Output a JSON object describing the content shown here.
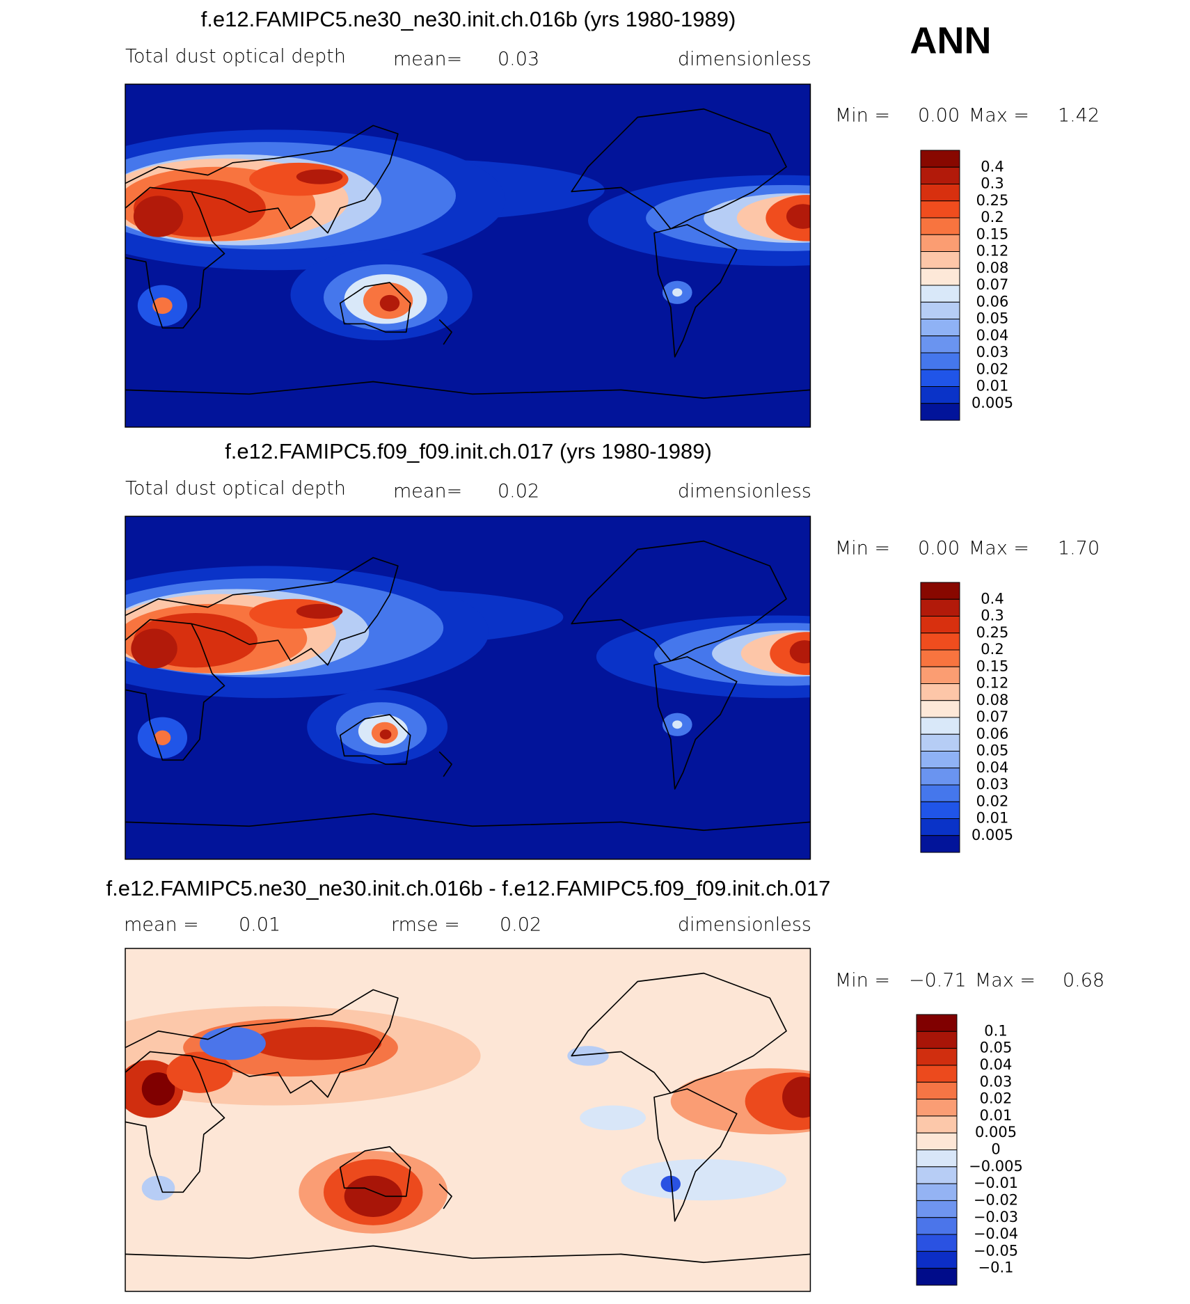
{
  "header": {
    "season": "ANN"
  },
  "panels": [
    {
      "title": "f.e12.FAMIPC5.ne30_ne30.init.ch.016b (yrs 1980-1989)",
      "subtitle": {
        "field": "Total dust optical depth",
        "mean_label": "mean=",
        "mean": "0.03",
        "units": "dimensionless"
      },
      "range": {
        "min_label": "Min =",
        "min": "0.00",
        "max_label": "Max =",
        "max": "1.42"
      },
      "colorbar": {
        "labels": [
          "0.4",
          "0.3",
          "0.25",
          "0.2",
          "0.15",
          "0.12",
          "0.08",
          "0.07",
          "0.06",
          "0.05",
          "0.04",
          "0.03",
          "0.02",
          "0.01",
          "0.005"
        ],
        "colors": [
          "#880800",
          "#b21a0a",
          "#d8300f",
          "#f04d1e",
          "#f8743f",
          "#fb9d72",
          "#fdc6a8",
          "#fde8d8",
          "#d9e8f9",
          "#b6cdf5",
          "#8fb2f5",
          "#6a94f0",
          "#4577ec",
          "#2055e8",
          "#0a33c8",
          "#02149a"
        ]
      }
    },
    {
      "title": "f.e12.FAMIPC5.f09_f09.init.ch.017 (yrs 1980-1989)",
      "subtitle": {
        "field": "Total dust optical depth",
        "mean_label": "mean=",
        "mean": "0.02",
        "units": "dimensionless"
      },
      "range": {
        "min_label": "Min =",
        "min": "0.00",
        "max_label": "Max =",
        "max": "1.70"
      },
      "colorbar": {
        "labels": [
          "0.4",
          "0.3",
          "0.25",
          "0.2",
          "0.15",
          "0.12",
          "0.08",
          "0.07",
          "0.06",
          "0.05",
          "0.04",
          "0.03",
          "0.02",
          "0.01",
          "0.005"
        ],
        "colors": [
          "#880800",
          "#b21a0a",
          "#d8300f",
          "#f04d1e",
          "#f8743f",
          "#fb9d72",
          "#fdc6a8",
          "#fde8d8",
          "#d9e8f9",
          "#b6cdf5",
          "#8fb2f5",
          "#6a94f0",
          "#4577ec",
          "#2055e8",
          "#0a33c8",
          "#02149a"
        ]
      }
    },
    {
      "title": "f.e12.FAMIPC5.ne30_ne30.init.ch.016b - f.e12.FAMIPC5.f09_f09.init.ch.017",
      "subtitle": {
        "mean_label": "mean =",
        "mean": "0.01",
        "rmse_label": "rmse =",
        "rmse": "0.02",
        "units": "dimensionless"
      },
      "range": {
        "min_label": "Min =",
        "min": "−0.71",
        "max_label": "Max =",
        "max": "0.68"
      },
      "colorbar": {
        "labels": [
          "0.1",
          "0.05",
          "0.04",
          "0.03",
          "0.02",
          "0.01",
          "0.005",
          "0",
          "−0.005",
          "−0.01",
          "−0.02",
          "−0.03",
          "−0.04",
          "−0.05",
          "−0.1"
        ],
        "colors": [
          "#800000",
          "#a81508",
          "#d02e0f",
          "#ec4a1d",
          "#f57545",
          "#fa9d74",
          "#fcc8aa",
          "#fde6d6",
          "#d8e6f8",
          "#b7cdf5",
          "#94b3f3",
          "#6f95ef",
          "#4b75ea",
          "#2a52e2",
          "#0c2ec6",
          "#000c8a"
        ]
      }
    }
  ]
}
